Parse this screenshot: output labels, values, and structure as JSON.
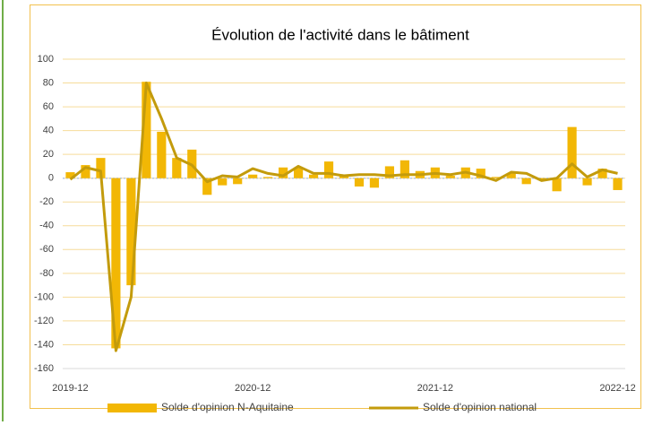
{
  "chart_data": {
    "type": "bar",
    "title": "Évolution de l'activité dans le bâtiment",
    "categories": [
      "2019-12",
      null,
      null,
      null,
      null,
      null,
      null,
      null,
      null,
      null,
      null,
      null,
      "2020-12",
      null,
      null,
      null,
      null,
      null,
      null,
      null,
      null,
      null,
      null,
      null,
      "2021-12",
      null,
      null,
      null,
      null,
      null,
      null,
      null,
      null,
      null,
      null,
      null,
      "2022-12"
    ],
    "series": [
      {
        "name": "Solde d'opinion N-Aquitaine",
        "type": "bar",
        "color": "#f2b705",
        "values": [
          5,
          11,
          17,
          -143,
          -90,
          81,
          39,
          17,
          24,
          -14,
          -6,
          -5,
          3,
          1,
          9,
          9,
          3,
          14,
          2,
          -7,
          -8,
          10,
          15,
          6,
          9,
          2,
          9,
          8,
          1,
          4,
          -5,
          -1,
          -11,
          43,
          -6,
          8,
          -10
        ]
      },
      {
        "name": "Solde d'opinion national",
        "type": "line",
        "color": "#c39b0c",
        "values": [
          -1,
          9,
          6,
          -145,
          -100,
          80,
          50,
          17,
          11,
          -3,
          2,
          1,
          8,
          4,
          2,
          10,
          4,
          4,
          2,
          3,
          3,
          2,
          3,
          3,
          4,
          3,
          5,
          2,
          -2,
          5,
          4,
          -2,
          0,
          12,
          1,
          7,
          4
        ]
      }
    ],
    "ylim": [
      -160,
      100
    ],
    "yticks": [
      -160,
      -140,
      -120,
      -100,
      -80,
      -60,
      -40,
      -20,
      0,
      20,
      40,
      60,
      80,
      100
    ],
    "grid": true
  }
}
